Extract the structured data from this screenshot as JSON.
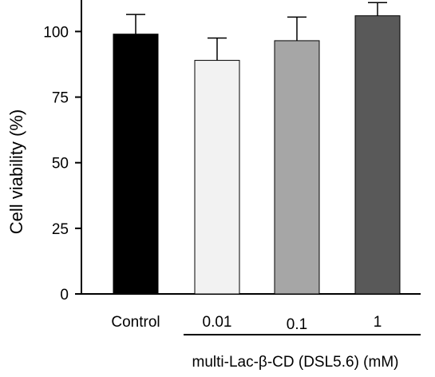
{
  "chart_data": {
    "type": "bar",
    "title": "",
    "ylabel": "Cell viability (%)",
    "xlabel": "multi-Lac-β-CD (DSL5.6) (mM)",
    "ylim": [
      0,
      112
    ],
    "yticks": [
      0,
      25,
      50,
      75,
      100
    ],
    "grid": false,
    "categories": [
      "Control",
      "0.01",
      "0.1",
      "1"
    ],
    "values": [
      99,
      89,
      96.5,
      106
    ],
    "errors": [
      7.5,
      8.5,
      9,
      5
    ],
    "colors": [
      "#000000",
      "#f2f2f2",
      "#a6a6a6",
      "#595959"
    ],
    "group_bracket": {
      "label": "multi-Lac-β-CD (DSL5.6) (mM)",
      "categories": [
        "0.01",
        "0.1",
        "1"
      ]
    }
  }
}
